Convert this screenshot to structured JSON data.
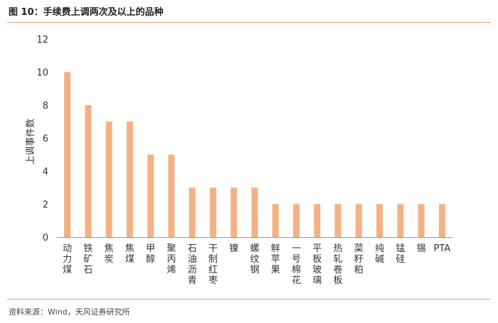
{
  "header": {
    "title": "图 10：手续费上调两次及以上的品种"
  },
  "footer": {
    "source": "资料来源：Wind，天风证券研究所"
  },
  "chart_data": {
    "type": "bar",
    "title": "图 10：手续费上调两次及以上的品种",
    "xlabel": "",
    "ylabel": "上调事件数",
    "ylim": [
      0,
      12
    ],
    "yticks": [
      0,
      2,
      4,
      6,
      8,
      10,
      12
    ],
    "grid": false,
    "bar_color": "#F4B183",
    "categories": [
      "动力煤",
      "铁矿石",
      "焦炭",
      "焦煤",
      "甲醇",
      "聚丙烯",
      "石油沥青",
      "干制红枣",
      "镍",
      "螺纹钢",
      "鲜苹果",
      "一号棉花",
      "平板玻璃",
      "热轧卷板",
      "菜籽粕",
      "纯碱",
      "锰硅",
      "锡",
      "PTA"
    ],
    "values": [
      10,
      8,
      7,
      7,
      5,
      5,
      3,
      3,
      3,
      3,
      2,
      2,
      2,
      2,
      2,
      2,
      2,
      2,
      2
    ]
  }
}
